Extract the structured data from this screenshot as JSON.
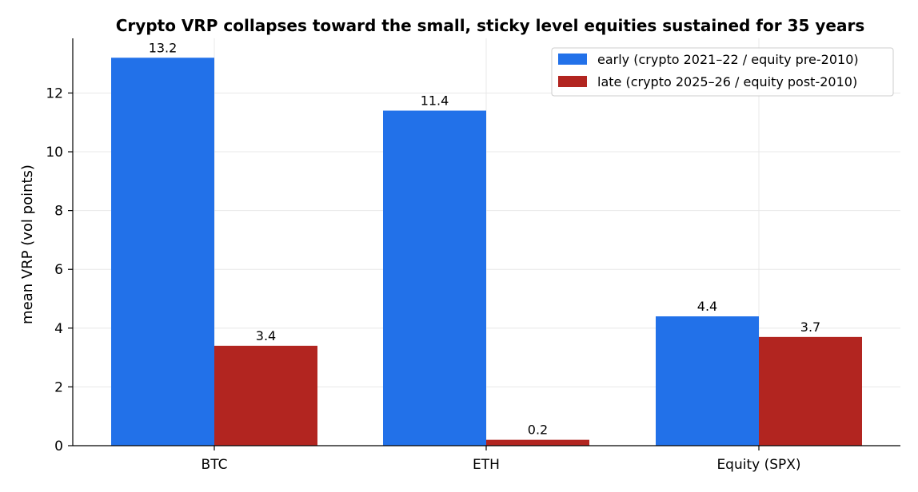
{
  "chart_data": {
    "type": "bar",
    "title": "Crypto VRP collapses toward the small, sticky level equities sustained for 35 years",
    "xlabel": "",
    "ylabel": "mean VRP (vol points)",
    "categories": [
      "BTC",
      "ETH",
      "Equity (SPX)"
    ],
    "series": [
      {
        "name": "early (crypto 2021–22 / equity pre-2010)",
        "values": [
          13.2,
          11.4,
          4.4
        ],
        "color": "#2271e9",
        "labels": [
          "13.2",
          "11.4",
          "4.4"
        ]
      },
      {
        "name": "late (crypto 2025–26 / equity post-2010)",
        "values": [
          3.4,
          0.2,
          3.7
        ],
        "color": "#b22520",
        "labels": [
          "3.4",
          "0.2",
          "3.7"
        ]
      }
    ],
    "ylim": [
      0,
      13.86
    ],
    "yticks": [
      0,
      2,
      4,
      6,
      8,
      10,
      12
    ],
    "grid": true,
    "legend_position": "top-right"
  }
}
